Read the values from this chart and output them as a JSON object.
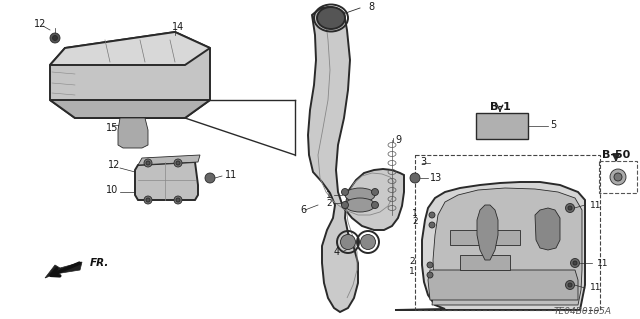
{
  "bg_color": "#ffffff",
  "fig_width": 6.4,
  "fig_height": 3.19,
  "dpi": 100,
  "diagram_code": "TE04B0105A",
  "line_color": "#2a2a2a",
  "text_color": "#1a1a1a",
  "gray_light": "#c8c8c8",
  "gray_mid": "#a0a0a0",
  "gray_dark": "#707070",
  "lw_main": 1.0,
  "lw_thin": 0.6,
  "lw_thick": 1.4
}
